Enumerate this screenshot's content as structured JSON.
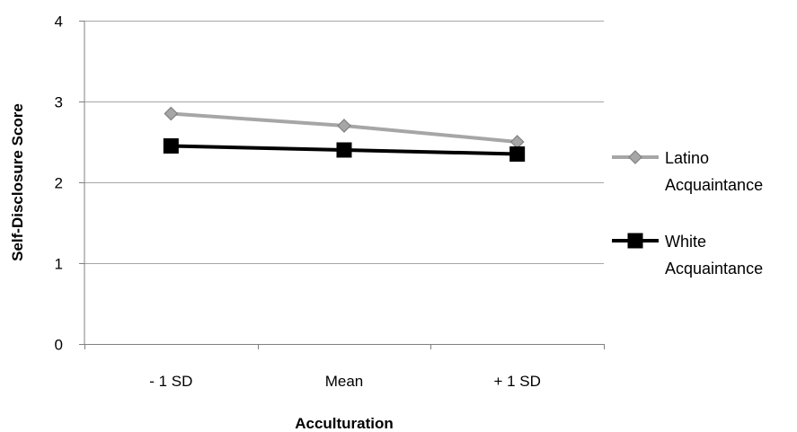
{
  "chart_data": {
    "type": "line",
    "title": "",
    "xlabel": "Acculturation",
    "ylabel": "Self-Disclosure Score",
    "categories": [
      "- 1 SD",
      "Mean",
      "+ 1 SD"
    ],
    "ylim": [
      0,
      4
    ],
    "yticks": [
      "0",
      "1",
      "2",
      "3",
      "4"
    ],
    "grid": true,
    "legend_position": "right",
    "series": [
      {
        "name_lines": [
          "Latino",
          "Acquaintance"
        ],
        "values": [
          2.85,
          2.7,
          2.5
        ],
        "color": "#a6a6a6",
        "marker": "diamond",
        "marker_fill": "#a6a6a6",
        "marker_stroke": "#808080"
      },
      {
        "name_lines": [
          "White",
          "Acquaintance"
        ],
        "values": [
          2.45,
          2.4,
          2.35
        ],
        "color": "#000000",
        "marker": "square",
        "marker_fill": "#000000",
        "marker_stroke": "#000000"
      }
    ]
  }
}
